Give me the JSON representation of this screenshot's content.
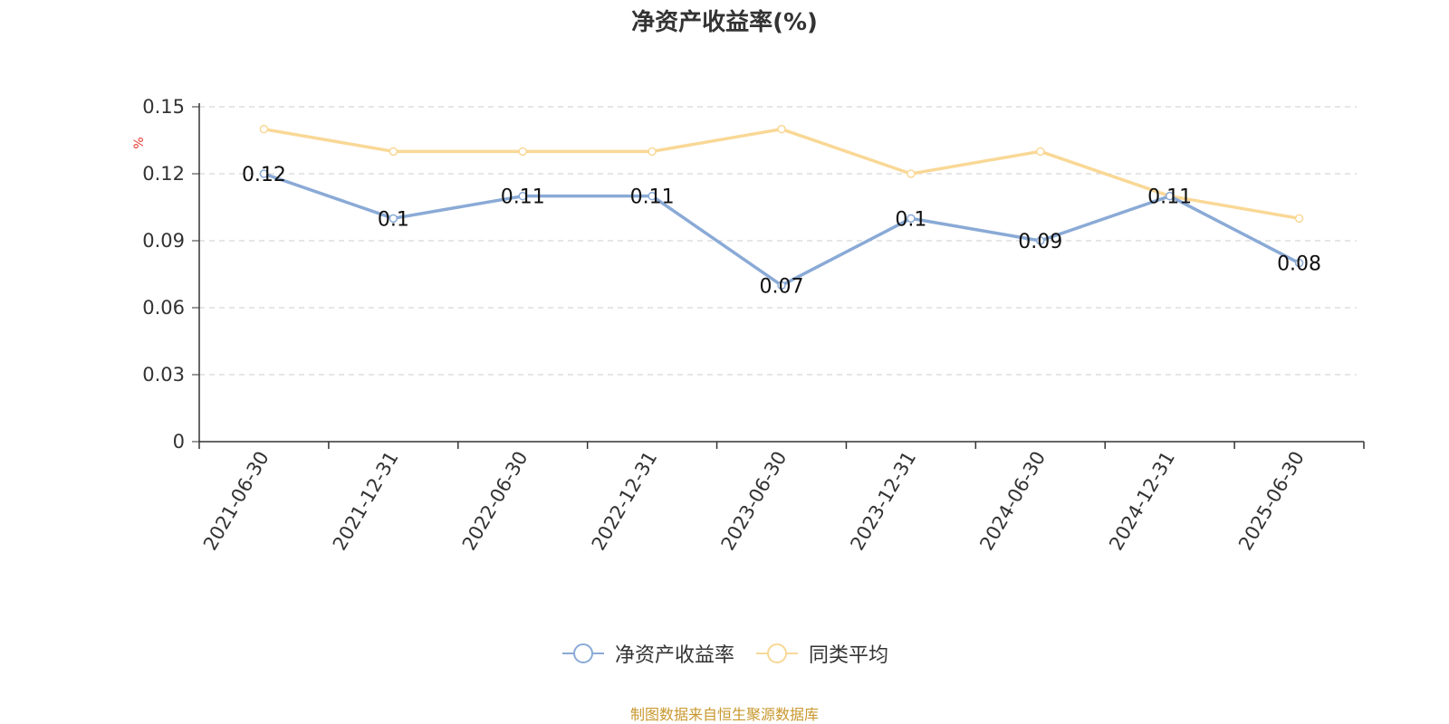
{
  "colors": {
    "series1": "#8aaad6",
    "series2": "#f9d896",
    "unit": "#e8382f",
    "grid": "#cccccc",
    "axis": "#333333",
    "source": "#c8982f"
  },
  "chart_data": {
    "type": "line",
    "title": "净资产收益率(%)",
    "ylabel": "%",
    "xlabel": "",
    "categories": [
      "2021-06-30",
      "2021-12-31",
      "2022-06-30",
      "2022-12-31",
      "2023-06-30",
      "2023-12-31",
      "2024-06-30",
      "2024-12-31",
      "2025-06-30"
    ],
    "yticks": [
      "0",
      "0.03",
      "0.06",
      "0.09",
      "0.12",
      "0.15"
    ],
    "ylim": [
      0,
      0.15
    ],
    "grid": true,
    "legend_position": "bottom",
    "series": [
      {
        "name": "净资产收益率",
        "values": [
          0.12,
          0.1,
          0.11,
          0.11,
          0.07,
          0.1,
          0.09,
          0.11,
          0.08
        ],
        "data_labels": [
          "0.12",
          "0.1",
          "0.11",
          "0.11",
          "0.07",
          "0.1",
          "0.09",
          "0.11",
          "0.08"
        ]
      },
      {
        "name": "同类平均",
        "values": [
          0.14,
          0.13,
          0.13,
          0.13,
          0.14,
          0.12,
          0.13,
          0.11,
          0.1
        ]
      }
    ]
  },
  "legend": {
    "items": [
      {
        "label": "净资产收益率"
      },
      {
        "label": "同类平均"
      }
    ]
  },
  "source_note": "制图数据来自恒生聚源数据库"
}
